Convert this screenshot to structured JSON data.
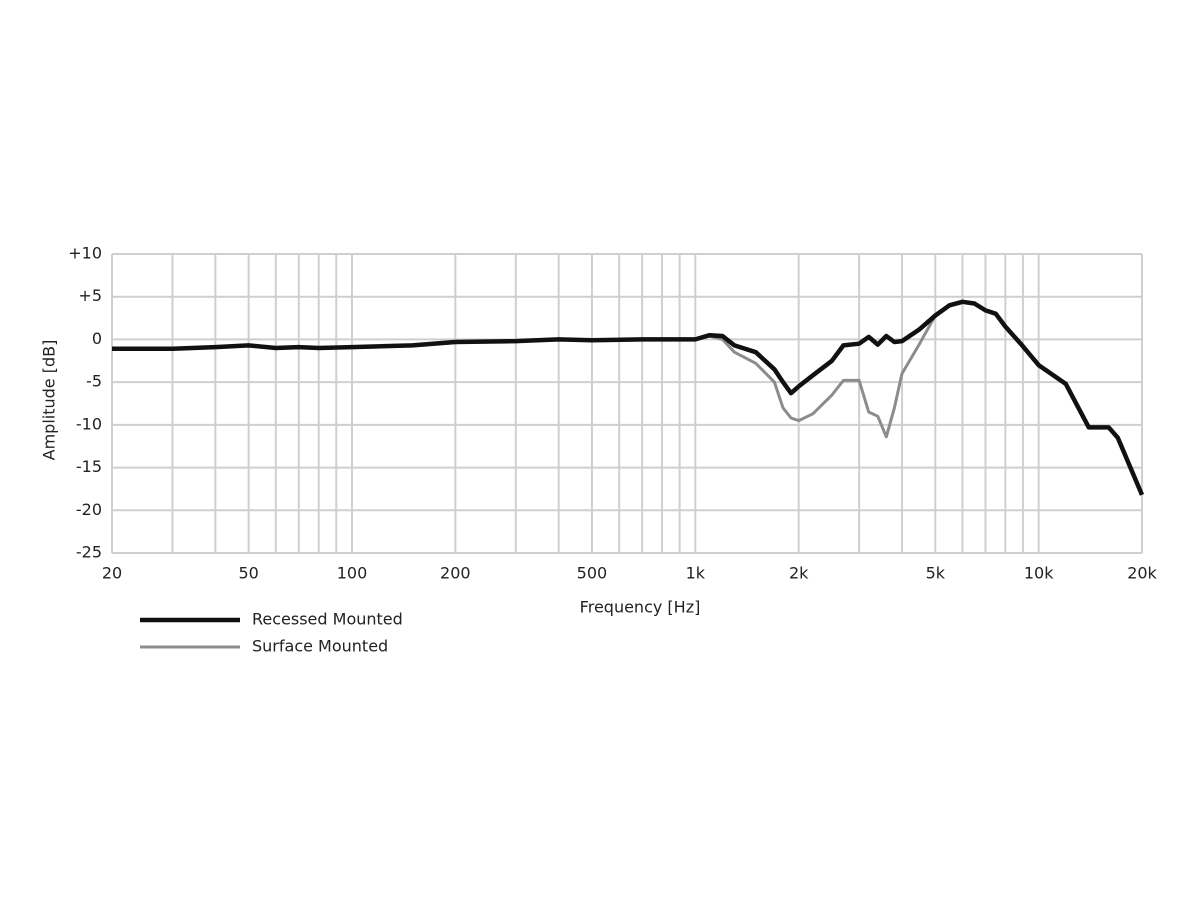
{
  "chart_data": {
    "type": "line",
    "xlabel": "Frequency [Hz]",
    "ylabel": "Amplitude [dB]",
    "xscale": "log",
    "grid": true,
    "legend": "bottom-left",
    "xlim": [
      20,
      20000
    ],
    "ylim": [
      -25,
      10
    ],
    "xticks": [
      20,
      50,
      100,
      200,
      500,
      {
        "value": 1000,
        "label": "1k"
      },
      {
        "value": 2000,
        "label": "2k"
      },
      {
        "value": 5000,
        "label": "5k"
      },
      {
        "value": 10000,
        "label": "10k"
      },
      {
        "value": 20000,
        "label": "20k"
      }
    ],
    "xminorticks": [
      30,
      40,
      60,
      70,
      80,
      90,
      300,
      400,
      600,
      700,
      800,
      900,
      3000,
      4000,
      6000,
      7000,
      8000,
      9000
    ],
    "yticks": [
      {
        "value": 10,
        "label": "+10"
      },
      {
        "value": 5,
        "label": "+5"
      },
      0,
      -5,
      -10,
      -15,
      -20,
      -25
    ],
    "x": [
      20,
      30,
      40,
      50,
      60,
      70,
      80,
      100,
      150,
      200,
      300,
      400,
      500,
      700,
      1000,
      1100,
      1200,
      1300,
      1500,
      1700,
      1800,
      1900,
      2000,
      2200,
      2500,
      2700,
      3000,
      3200,
      3400,
      3600,
      3800,
      4000,
      4500,
      5000,
      5500,
      6000,
      6500,
      7000,
      7500,
      8000,
      9000,
      10000,
      12000,
      14000,
      16000,
      17000,
      20000
    ],
    "series": [
      {
        "name": "Recessed Mounted",
        "color": "#111111",
        "values": [
          -1.1,
          -1.1,
          -0.9,
          -0.7,
          -1.0,
          -0.9,
          -1.0,
          -0.9,
          -0.7,
          -0.3,
          -0.2,
          0,
          -0.1,
          0,
          0,
          0.5,
          0.4,
          -0.7,
          -1.5,
          -3.5,
          -5.0,
          -6.3,
          -5.5,
          -4.2,
          -2.5,
          -0.7,
          -0.5,
          0.3,
          -0.6,
          0.4,
          -0.3,
          -0.2,
          1.2,
          2.8,
          4.0,
          4.4,
          4.2,
          3.4,
          3.0,
          1.5,
          -0.8,
          -3.0,
          -5.2,
          -10.3,
          -10.3,
          -11.5,
          -18.2
        ]
      },
      {
        "name": "Surface Mounted",
        "color": "#8c8c8c",
        "values": [
          null,
          null,
          null,
          null,
          null,
          null,
          null,
          null,
          null,
          null,
          null,
          null,
          null,
          null,
          0,
          0.4,
          0,
          -1.5,
          -2.8,
          -5.0,
          -8.0,
          -9.2,
          -9.5,
          -8.7,
          -6.5,
          -4.8,
          -4.8,
          -8.5,
          -9.0,
          -11.4,
          -8.0,
          -4.0,
          -0.5,
          2.8,
          null,
          null,
          null,
          null,
          null,
          null,
          null,
          null,
          null,
          null,
          null,
          null,
          null
        ]
      }
    ]
  }
}
